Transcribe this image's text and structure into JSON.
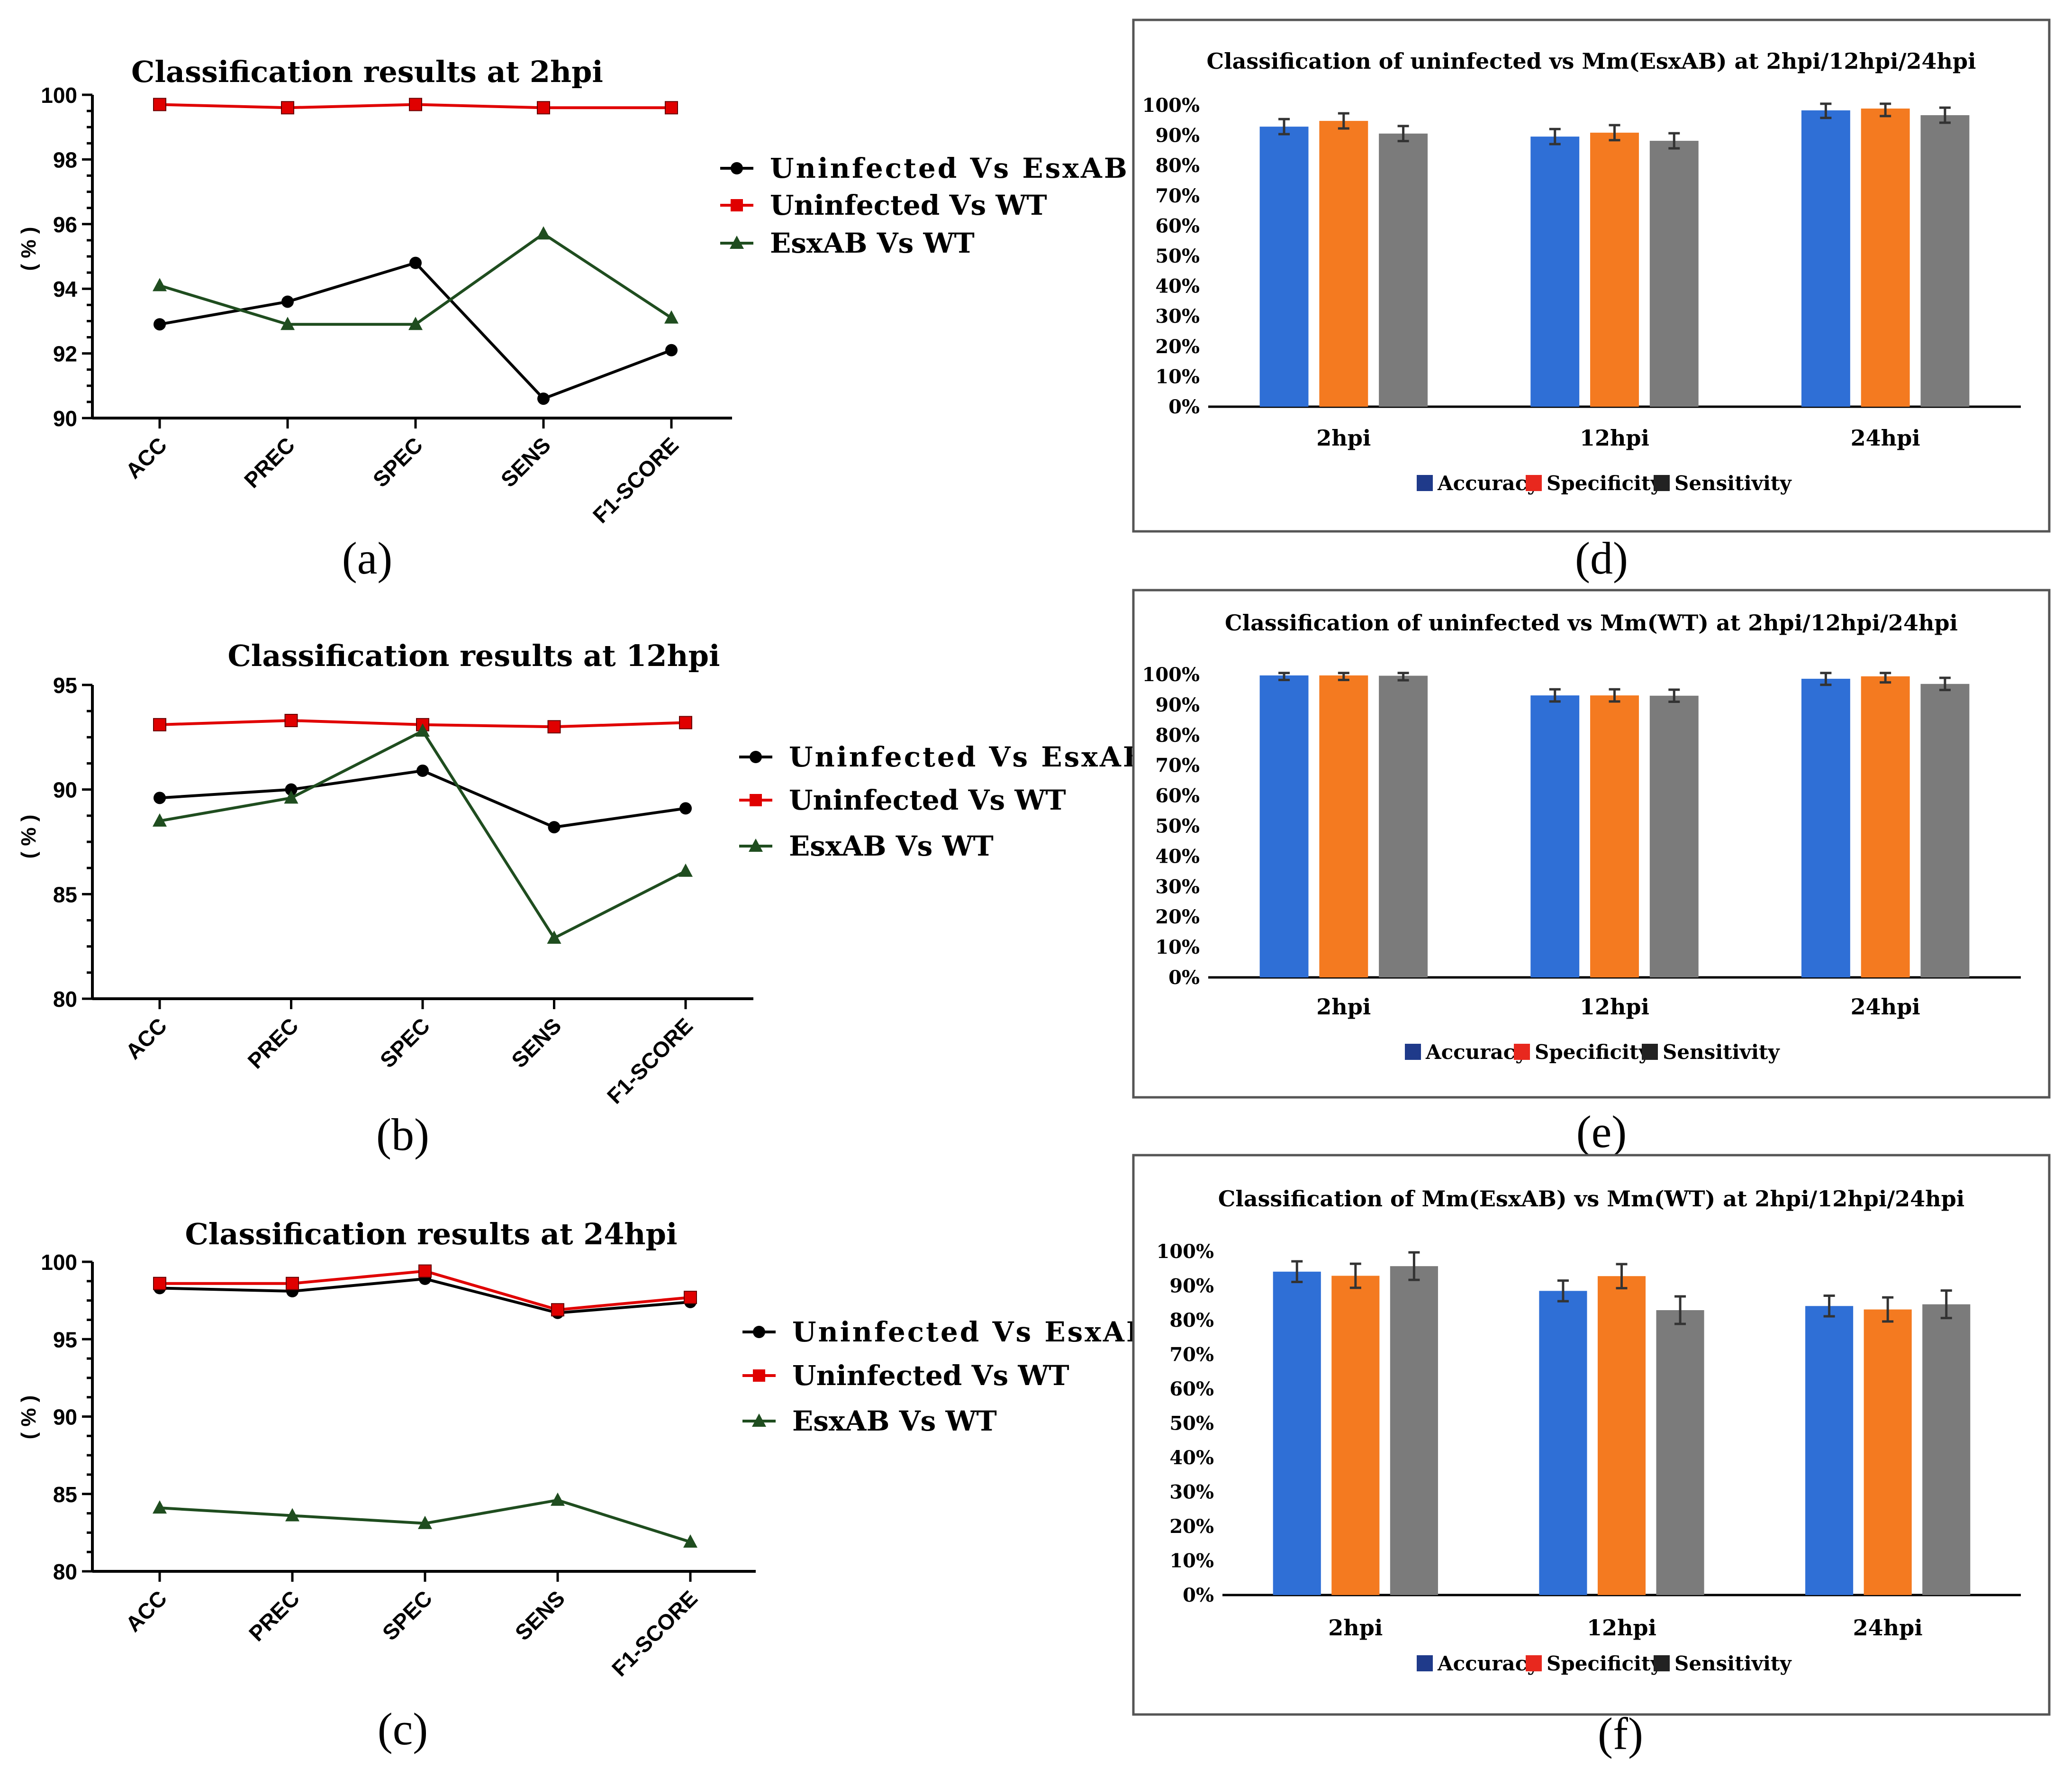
{
  "colors": {
    "uninfected_vs_esxab": "#000000",
    "uninfected_vs_wt": "#e00000",
    "esxab_vs_wt": "#1f4d1f",
    "accuracy": "#2f6fd6",
    "specificity": "#f47a20",
    "sensitivity": "#7b7b7b",
    "legend_accuracy": "#1f3a8a",
    "legend_specificity": "#e8281e",
    "legend_sensitivity": "#222222"
  },
  "chart_data": [
    {
      "type": "line",
      "title": "Classification results at 2hpi",
      "caption": "(a)",
      "ylabel": "( % )",
      "categories": [
        "ACC",
        "PREC",
        "SPEC",
        "SENS",
        "F1-SCORE"
      ],
      "ylim": [
        90,
        100
      ],
      "yticks": [
        90,
        92,
        94,
        96,
        98,
        100
      ],
      "legend": [
        "Uninfected Vs EsxAB",
        "Uninfected Vs WT",
        "EsxAB Vs WT"
      ],
      "series": [
        {
          "name": "Uninfected Vs EsxAB",
          "marker": "circle",
          "values": [
            92.9,
            93.6,
            94.8,
            90.6,
            92.1
          ]
        },
        {
          "name": "Uninfected Vs WT",
          "marker": "square",
          "values": [
            99.7,
            99.6,
            99.7,
            99.6,
            99.6
          ]
        },
        {
          "name": "EsxAB Vs WT",
          "marker": "triangle",
          "values": [
            94.1,
            92.9,
            92.9,
            95.7,
            93.1
          ]
        }
      ]
    },
    {
      "type": "line",
      "title": "Classification results at 12hpi",
      "caption": "(b)",
      "ylabel": "( % )",
      "categories": [
        "ACC",
        "PREC",
        "SPEC",
        "SENS",
        "F1-SCORE"
      ],
      "ylim": [
        80,
        95
      ],
      "yticks": [
        80,
        85,
        90,
        95
      ],
      "legend": [
        "Uninfected Vs EsxAB",
        "Uninfected Vs WT",
        "EsxAB Vs WT"
      ],
      "series": [
        {
          "name": "Uninfected Vs EsxAB",
          "marker": "circle",
          "values": [
            89.6,
            90.0,
            90.9,
            88.2,
            89.1
          ]
        },
        {
          "name": "Uninfected Vs WT",
          "marker": "square",
          "values": [
            93.1,
            93.3,
            93.1,
            93.0,
            93.2
          ]
        },
        {
          "name": "EsxAB Vs WT",
          "marker": "triangle",
          "values": [
            88.5,
            89.6,
            92.8,
            82.9,
            86.1
          ]
        }
      ]
    },
    {
      "type": "line",
      "title": "Classification results at 24hpi",
      "caption": "(c)",
      "ylabel": "( % )",
      "categories": [
        "ACC",
        "PREC",
        "SPEC",
        "SENS",
        "F1-SCORE"
      ],
      "ylim": [
        80,
        100
      ],
      "yticks": [
        80,
        85,
        90,
        95,
        100
      ],
      "legend": [
        "Uninfected Vs EsxAB",
        "Uninfected Vs WT",
        "EsxAB Vs WT"
      ],
      "series": [
        {
          "name": "Uninfected Vs EsxAB",
          "marker": "circle",
          "values": [
            98.3,
            98.1,
            98.9,
            96.7,
            97.4
          ]
        },
        {
          "name": "Uninfected Vs WT",
          "marker": "square",
          "values": [
            98.6,
            98.6,
            99.4,
            96.9,
            97.7
          ]
        },
        {
          "name": "EsxAB Vs WT",
          "marker": "triangle",
          "values": [
            84.1,
            83.6,
            83.1,
            84.6,
            81.9
          ]
        }
      ]
    },
    {
      "type": "bar",
      "title": "Classification of uninfected vs Mm(EsxAB) at 2hpi/12hpi/24hpi",
      "caption": "(d)",
      "categories": [
        "2hpi",
        "12hpi",
        "24hpi"
      ],
      "ylim": [
        0,
        100
      ],
      "yticks": [
        "0%",
        "10%",
        "20%",
        "30%",
        "40%",
        "50%",
        "60%",
        "70%",
        "80%",
        "90%",
        "100%"
      ],
      "legend": [
        "Accuracy",
        "Specificity",
        "Sensitivity"
      ],
      "series": [
        {
          "name": "Accuracy",
          "values": [
            92.9,
            89.6,
            98.3
          ],
          "errors": [
            2.5,
            2.5,
            2.5
          ]
        },
        {
          "name": "Specificity",
          "values": [
            94.8,
            90.9,
            98.9
          ],
          "errors": [
            2.5,
            2.5,
            2.5
          ]
        },
        {
          "name": "Sensitivity",
          "values": [
            90.6,
            88.2,
            96.7
          ],
          "errors": [
            2.5,
            2.5,
            2.5
          ]
        }
      ]
    },
    {
      "type": "bar",
      "title": "Classification of uninfected vs Mm(WT) at 2hpi/12hpi/24hpi",
      "caption": "(e)",
      "categories": [
        "2hpi",
        "12hpi",
        "24hpi"
      ],
      "ylim": [
        0,
        100
      ],
      "yticks": [
        "0%",
        "10%",
        "20%",
        "30%",
        "40%",
        "50%",
        "60%",
        "70%",
        "80%",
        "90%",
        "100%"
      ],
      "legend": [
        "Accuracy",
        "Specificity",
        "Sensitivity"
      ],
      "series": [
        {
          "name": "Accuracy",
          "values": [
            99.7,
            93.1,
            98.6
          ],
          "errors": [
            1.5,
            2.0,
            2.0
          ]
        },
        {
          "name": "Specificity",
          "values": [
            99.7,
            93.1,
            99.4
          ],
          "errors": [
            1.5,
            2.0,
            2.0
          ]
        },
        {
          "name": "Sensitivity",
          "values": [
            99.6,
            93.0,
            96.9
          ],
          "errors": [
            1.5,
            2.0,
            2.0
          ]
        }
      ]
    },
    {
      "type": "bar",
      "title": "Classification of Mm(EsxAB) vs Mm(WT) at 2hpi/12hpi/24hpi",
      "caption": "(f)",
      "categories": [
        "2hpi",
        "12hpi",
        "24hpi"
      ],
      "ylim": [
        0,
        100
      ],
      "yticks": [
        "0%",
        "10%",
        "20%",
        "30%",
        "40%",
        "50%",
        "60%",
        "70%",
        "80%",
        "90%",
        "100%"
      ],
      "legend": [
        "Accuracy",
        "Specificity",
        "Sensitivity"
      ],
      "series": [
        {
          "name": "Accuracy",
          "values": [
            94.1,
            88.5,
            84.1
          ],
          "errors": [
            3.0,
            3.0,
            3.0
          ]
        },
        {
          "name": "Specificity",
          "values": [
            92.9,
            92.8,
            83.1
          ],
          "errors": [
            3.5,
            3.5,
            3.5
          ]
        },
        {
          "name": "Sensitivity",
          "values": [
            95.7,
            82.9,
            84.6
          ],
          "errors": [
            4.0,
            4.0,
            4.0
          ]
        }
      ]
    }
  ]
}
